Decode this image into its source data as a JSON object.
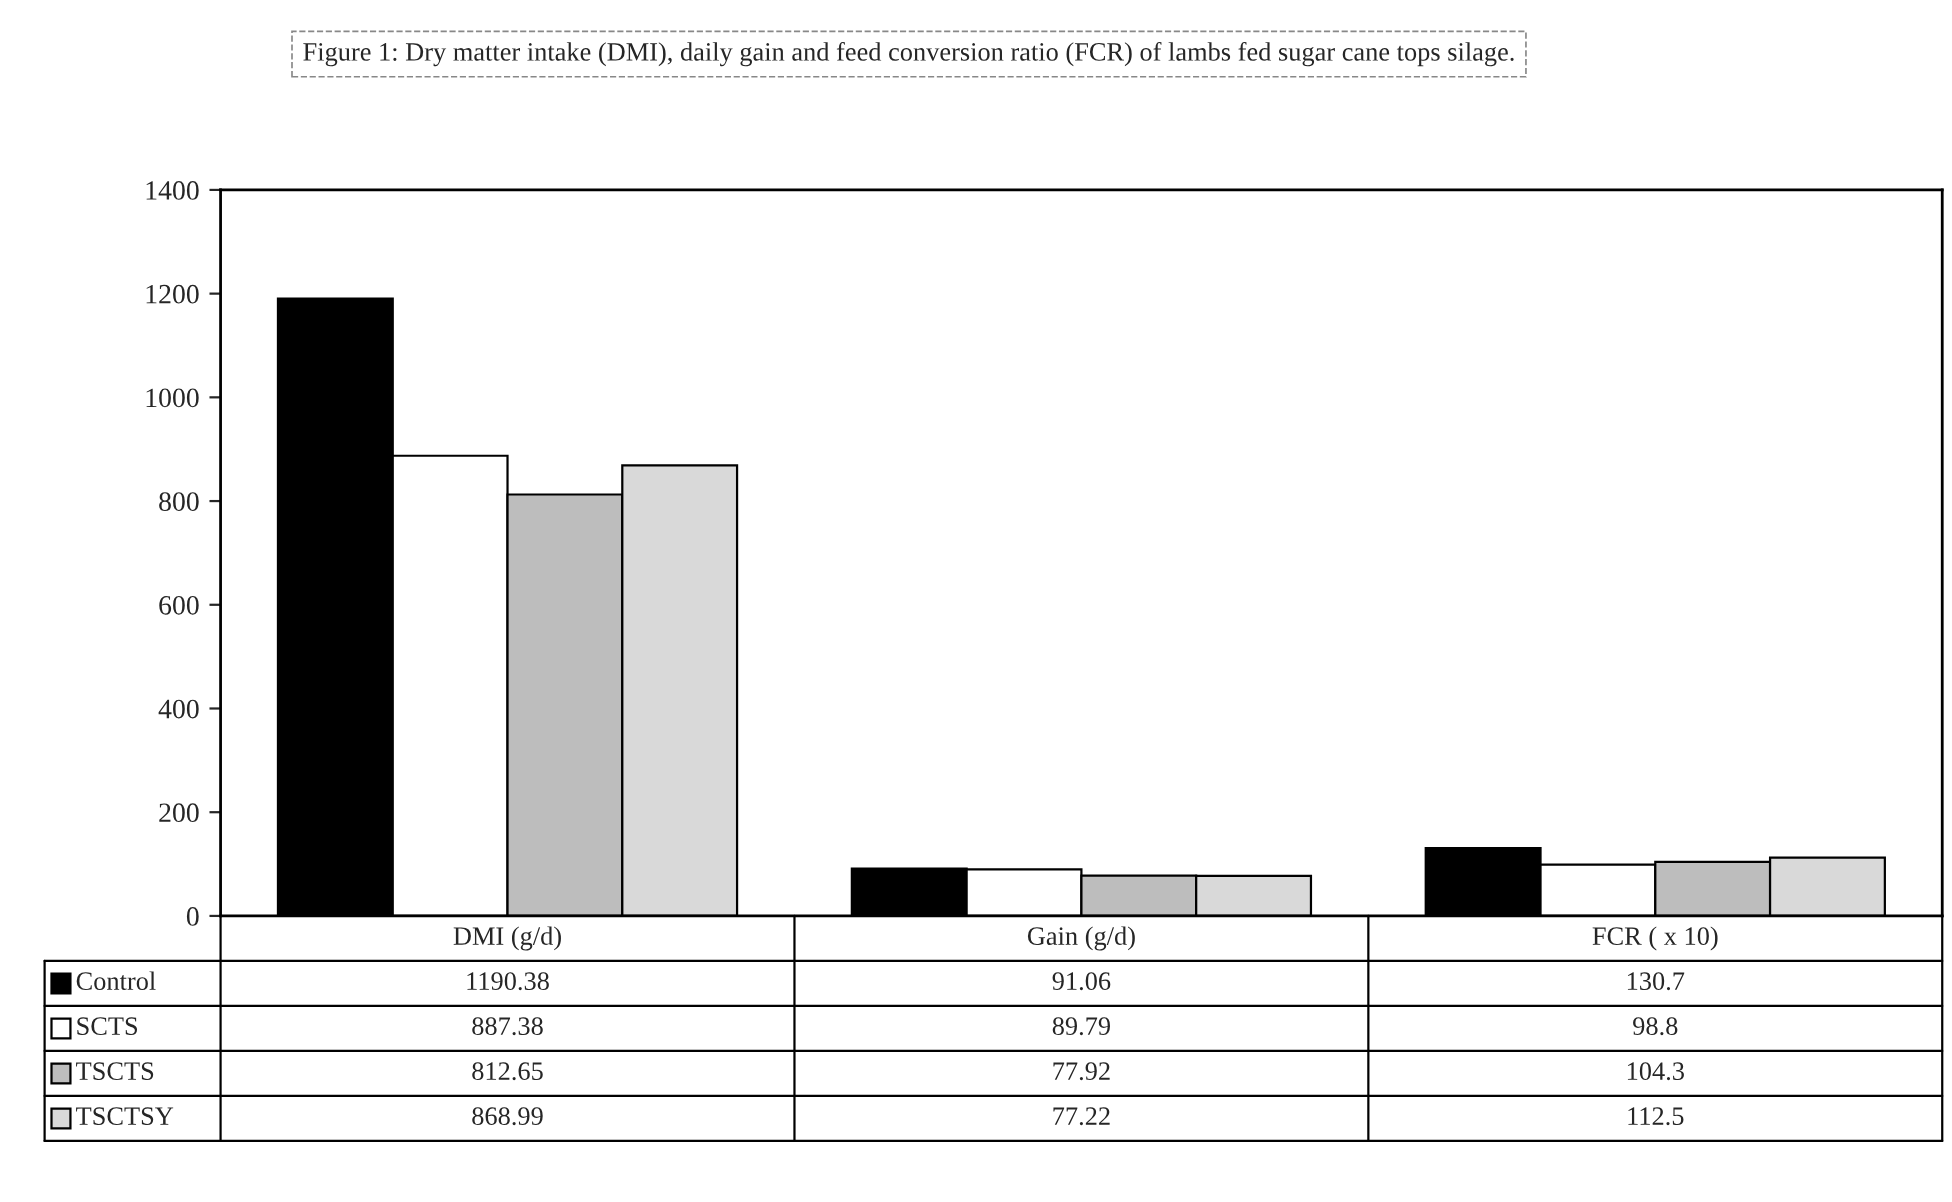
{
  "chart_data": {
    "type": "bar",
    "title": "Figure 1: Dry matter intake (DMI), daily gain and feed conversion ratio (FCR) of lambs fed sugar cane tops silage.",
    "categories": [
      "DMI (g/d)",
      "Gain (g/d)",
      "FCR ( x 10)"
    ],
    "series": [
      {
        "name": "Control",
        "color": "#000000",
        "values": [
          1190.38,
          91.06,
          130.7
        ]
      },
      {
        "name": "SCTS",
        "color": "#ffffff",
        "values": [
          887.38,
          89.79,
          98.8
        ]
      },
      {
        "name": "TSCTS",
        "color": "#bdbdbd",
        "values": [
          812.65,
          77.92,
          104.3
        ]
      },
      {
        "name": "TSCTSY",
        "color": "#d9d9d9",
        "values": [
          868.99,
          77.22,
          112.5
        ]
      }
    ],
    "ylim": [
      0,
      1400
    ],
    "yticks": [
      0,
      200,
      400,
      600,
      800,
      1000,
      1200,
      1400
    ],
    "data_labels": true,
    "legend": "bottom left",
    "grid": false
  }
}
